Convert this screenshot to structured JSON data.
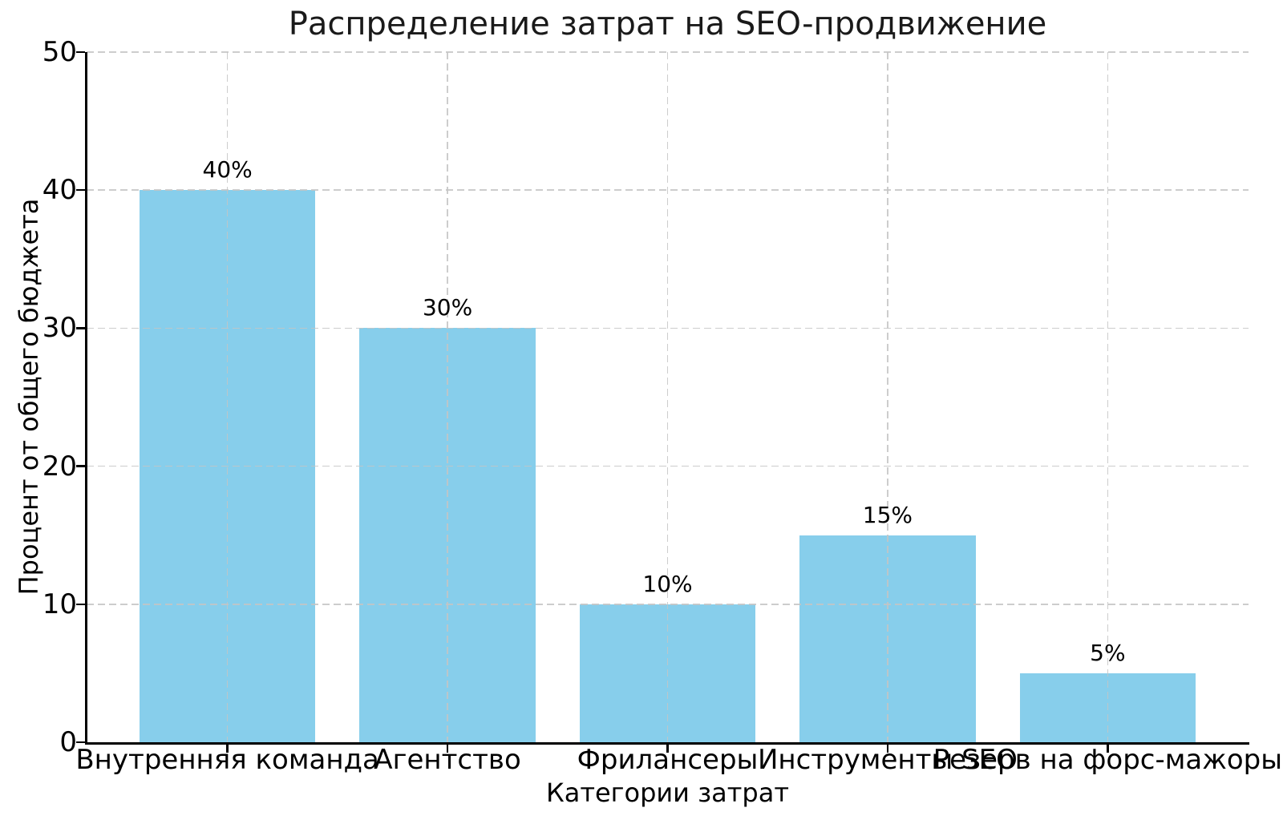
{
  "chart_data": {
    "type": "bar",
    "title": "Распределение затрат на SEO-продвижение",
    "xlabel": "Категории затрат",
    "ylabel": "Процент от общего бюджета",
    "categories": [
      "Внутренняя команда",
      "Агентство",
      "Фрилансеры",
      "Инструменты SEO",
      "Резерв на форс-мажоры"
    ],
    "values": [
      40,
      30,
      10,
      15,
      5
    ],
    "value_labels": [
      "40%",
      "30%",
      "10%",
      "15%",
      "5%"
    ],
    "yticks": [
      0,
      10,
      20,
      30,
      40,
      50
    ],
    "ytick_labels": [
      "0",
      "10",
      "20",
      "30",
      "40",
      "50"
    ],
    "ylim": [
      0,
      50
    ],
    "grid": "dashed gridlines on both axes, drawn above bars",
    "legend": "none",
    "bar_color": "#87CEEB",
    "grid_color": "#c4c4c4",
    "axis_color": "#000000",
    "text_color": "#000000"
  }
}
